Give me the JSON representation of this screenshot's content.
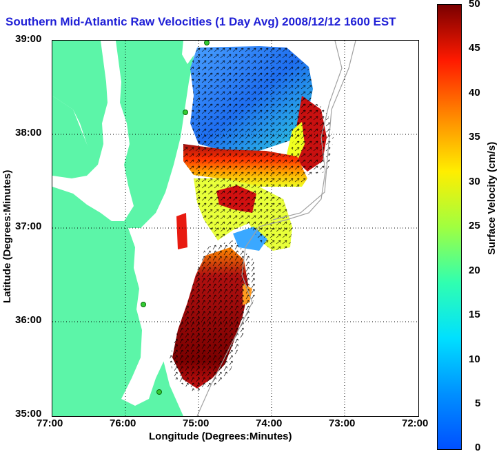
{
  "title": "Southern Mid-Atlantic Raw Velocities (1 Day Avg) 2008/12/12 1600 EST",
  "x_axis": {
    "label": "Longitude (Degrees:Minutes)",
    "ticks": [
      "77:00",
      "76:00",
      "75:00",
      "74:00",
      "73:00",
      "72:00"
    ]
  },
  "y_axis": {
    "label": "Latitude (Degrees:Minutes)",
    "ticks": [
      "39:00",
      "38:00",
      "37:00",
      "36:00",
      "35:00"
    ]
  },
  "colorbar": {
    "title": "Surface Velocity (cm/s)",
    "ticks": [
      "50",
      "45",
      "40",
      "35",
      "30",
      "25",
      "20",
      "15",
      "10",
      "5",
      "0"
    ],
    "min": 0,
    "max": 50,
    "colormap": "jet"
  },
  "colors": {
    "land": "#5cf5a8",
    "water": "#ffffff",
    "title": "#1f1fd6",
    "station": "#33cc33"
  },
  "map": {
    "region": "Southern Mid-Atlantic Bight",
    "lon_range": [
      "77:00",
      "72:00"
    ],
    "lat_range": [
      "35:00",
      "39:00"
    ],
    "grid": "dotted"
  }
}
